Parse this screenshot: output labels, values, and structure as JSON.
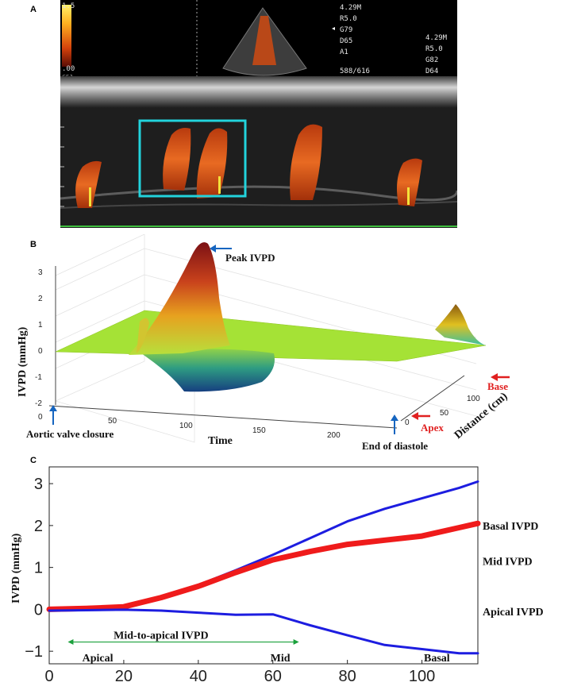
{
  "panels": {
    "a": "A",
    "b": "B",
    "c": "C"
  },
  "panel_a": {
    "colorbar_top": "1.5",
    "colorbar_bottom": ".00",
    "colorbar_corner": "C51",
    "settings_1": [
      "4.29M",
      "R5.0",
      "G79",
      "D65",
      "A1"
    ],
    "frame_counter": "588/616",
    "settings_2": [
      "4.29M",
      "R5.0",
      "G82",
      "D64"
    ],
    "colors": {
      "box": "#22d3dc",
      "doppler": "#e0581a",
      "marker_yellow": "#f4e13b",
      "marker_green": "#3fbf3f"
    }
  },
  "panel_b": {
    "ylabel": "IVPD (mmHg)",
    "yticks": [
      "3",
      "2",
      "1",
      "0",
      "-1",
      "-2"
    ],
    "time_ticks": [
      "0",
      "50",
      "100",
      "150",
      "200"
    ],
    "time_label": "Time",
    "distance_ticks": [
      "0",
      "50",
      "100"
    ],
    "distance_label": "Distance (cm)",
    "annotations": {
      "peak": "Peak IVPD",
      "aortic": "Aortic valve closure",
      "diastole": "End of diastole",
      "base": "Base",
      "apex": "Apex"
    },
    "colors": {
      "plane": "#a5e236",
      "peak_dark": "#8a1518",
      "trough": "#1a4f86",
      "arrow_blue": "#1565c0",
      "arrow_red": "#e02020"
    }
  },
  "chart_data": [
    {
      "type": "line",
      "title": "",
      "xlabel": "",
      "ylabel": "IVPD (mmHg)",
      "xlim": [
        0,
        115
      ],
      "ylim": [
        -1.3,
        3.4
      ],
      "x_ticks": [
        "0",
        "20",
        "40",
        "60",
        "80",
        "100"
      ],
      "y_ticks": [
        "3",
        "2",
        "1",
        "0",
        "−1"
      ],
      "x": [
        0,
        10,
        20,
        30,
        40,
        50,
        60,
        70,
        80,
        90,
        100,
        110,
        115
      ],
      "series": [
        {
          "name": "Basal IVPD",
          "color": "#1d1de0",
          "width": 3,
          "values": [
            0,
            0.02,
            0.08,
            0.3,
            0.58,
            0.93,
            1.3,
            1.7,
            2.1,
            2.4,
            2.65,
            2.9,
            3.05
          ]
        },
        {
          "name": "Mid IVPD",
          "color": "#ef1b1b",
          "width": 7,
          "values": [
            0,
            0.02,
            0.06,
            0.28,
            0.55,
            0.88,
            1.18,
            1.38,
            1.55,
            1.65,
            1.75,
            1.95,
            2.05
          ]
        },
        {
          "name": "Apical IVPD",
          "color": "#1d1de0",
          "width": 3,
          "values": [
            -0.03,
            -0.02,
            -0.01,
            -0.03,
            -0.08,
            -0.13,
            -0.12,
            -0.38,
            -0.62,
            -0.85,
            -0.95,
            -1.05,
            -1.05
          ]
        }
      ],
      "region_labels": [
        "Apical",
        "Mid",
        "Basal"
      ],
      "span_label": "Mid-to-apical IVPD",
      "span_range": [
        5,
        67
      ],
      "grid": false
    }
  ]
}
